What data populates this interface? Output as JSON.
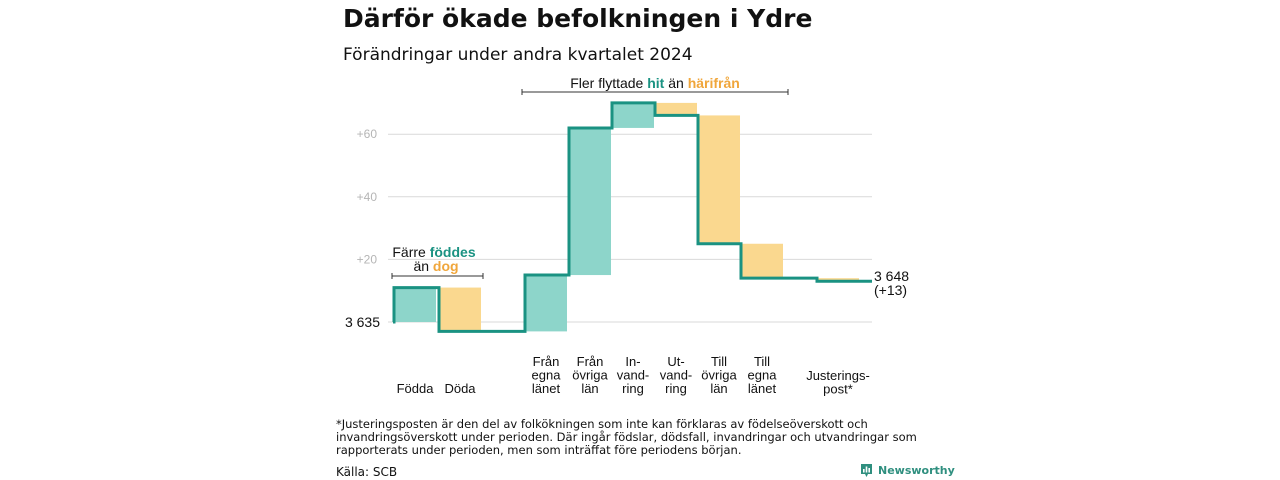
{
  "title": "Därför ökade befolkningen i Ydre",
  "subtitle": "Förändringar under andra kvartalet 2024",
  "chart_data": {
    "type": "waterfall",
    "start_value": 3635,
    "start_label": "3 635",
    "end_label": "3 648",
    "end_change_label": "(+13)",
    "y_ticks": [
      {
        "value": 20,
        "label": "+20"
      },
      {
        "value": 40,
        "label": "+40"
      },
      {
        "value": 60,
        "label": "+60"
      }
    ],
    "steps": [
      {
        "label": [
          "Födda"
        ],
        "change": 11
      },
      {
        "label": [
          "Döda"
        ],
        "change": -14
      },
      {
        "label": [
          "Från",
          "egna",
          "länet"
        ],
        "change": 18
      },
      {
        "label": [
          "Från",
          "övriga",
          "län"
        ],
        "change": 47
      },
      {
        "label": [
          "In-",
          "vand-",
          "ring"
        ],
        "change": 8
      },
      {
        "label": [
          "Ut-",
          "vand-",
          "ring"
        ],
        "change": -4
      },
      {
        "label": [
          "Till",
          "övriga",
          "län"
        ],
        "change": -41
      },
      {
        "label": [
          "Till",
          "egna",
          "länet"
        ],
        "change": -11
      },
      {
        "label": [
          "Justerings-",
          "post*"
        ],
        "change": -1
      }
    ],
    "colors": {
      "increase": "#8dd5ca",
      "decrease": "#fad88f",
      "line": "#1a9282",
      "grid": "#d9d9d9",
      "tick": "#b5b5b5",
      "teal_text": "#1a9282",
      "orange_text": "#f0a63b"
    },
    "annotations": {
      "births": {
        "line1": "Färre",
        "line1_highlight": "föddes",
        "line2": "än",
        "line2_highlight": "dog"
      },
      "migration": {
        "prefix": "Fler flyttade",
        "highlight1": "hit",
        "middle": "än",
        "highlight2": "härifrån"
      }
    }
  },
  "footnote": "*Justeringsposten är den del av folkökningen som inte kan förklaras av födelseöverskott och invandringsöverskott under perioden. Där ingår födslar, dödsfall, invandringar och utvandringar som rapporterats under perioden, men som inträffat före periodens början.",
  "source": "Källa: SCB",
  "brand": {
    "name": "Newsworthy",
    "logo_icon": "bar-chart-icon"
  }
}
